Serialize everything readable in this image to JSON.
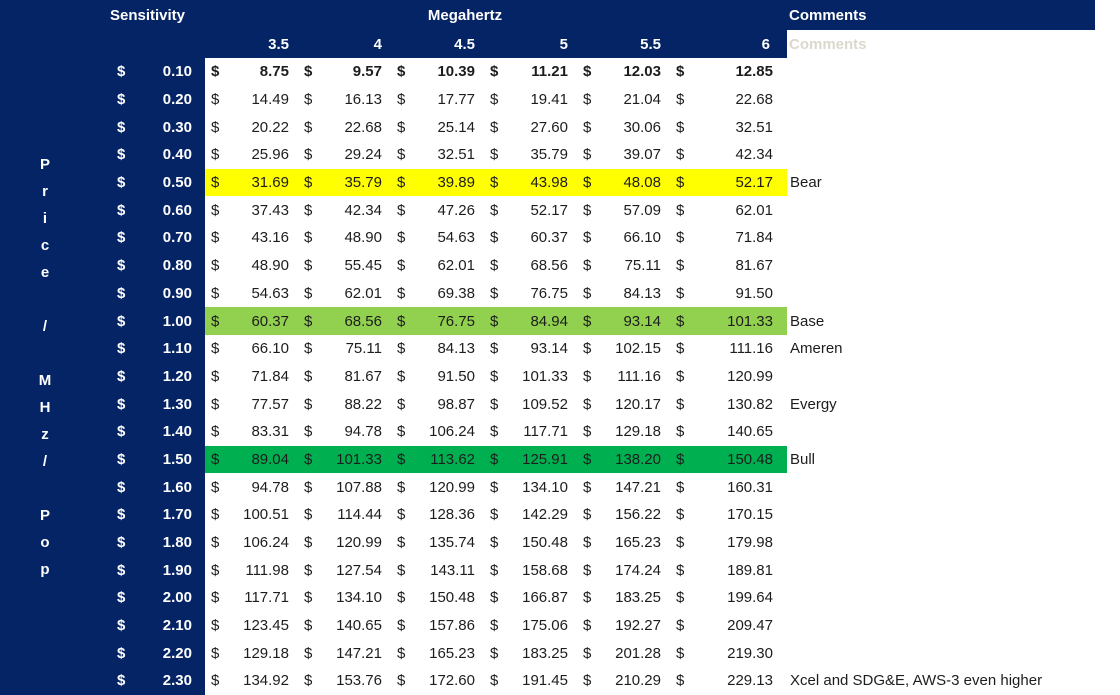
{
  "colors": {
    "navy": "#052465",
    "sheet_background": "#ffffff",
    "text_white": "#ffffff",
    "text_dark": "#1d1d1d",
    "highlight_yellow": "#ffff00",
    "highlight_light_green": "#92d050",
    "highlight_dark_green": "#00b050"
  },
  "header": {
    "sensitivity_label": "Sensitivity",
    "megahertz_label": "Megahertz",
    "comments_label": "Comments",
    "comments_ghost_label": "Comments",
    "mhz_columns": [
      "3.5",
      "4",
      "4.5",
      "5",
      "5.5",
      "6"
    ]
  },
  "left_axis": {
    "label": "Price / MHz / Pop",
    "label_vertical_lines": "P\nr\ni\nc\ne\n\n/\n\nM\nH\nz\n/\n\nP\no\np"
  },
  "table": {
    "currency_symbol": "$",
    "rows": [
      {
        "price": "0.10",
        "values": [
          "8.75",
          "9.57",
          "10.39",
          "11.21",
          "12.03",
          "12.85"
        ],
        "highlight": "none",
        "bold": true,
        "comment": ""
      },
      {
        "price": "0.20",
        "values": [
          "14.49",
          "16.13",
          "17.77",
          "19.41",
          "21.04",
          "22.68"
        ],
        "highlight": "none",
        "bold": false,
        "comment": ""
      },
      {
        "price": "0.30",
        "values": [
          "20.22",
          "22.68",
          "25.14",
          "27.60",
          "30.06",
          "32.51"
        ],
        "highlight": "none",
        "bold": false,
        "comment": ""
      },
      {
        "price": "0.40",
        "values": [
          "25.96",
          "29.24",
          "32.51",
          "35.79",
          "39.07",
          "42.34"
        ],
        "highlight": "none",
        "bold": false,
        "comment": ""
      },
      {
        "price": "0.50",
        "values": [
          "31.69",
          "35.79",
          "39.89",
          "43.98",
          "48.08",
          "52.17"
        ],
        "highlight": "yellow",
        "bold": false,
        "comment": "Bear"
      },
      {
        "price": "0.60",
        "values": [
          "37.43",
          "42.34",
          "47.26",
          "52.17",
          "57.09",
          "62.01"
        ],
        "highlight": "none",
        "bold": false,
        "comment": ""
      },
      {
        "price": "0.70",
        "values": [
          "43.16",
          "48.90",
          "54.63",
          "60.37",
          "66.10",
          "71.84"
        ],
        "highlight": "none",
        "bold": false,
        "comment": ""
      },
      {
        "price": "0.80",
        "values": [
          "48.90",
          "55.45",
          "62.01",
          "68.56",
          "75.11",
          "81.67"
        ],
        "highlight": "none",
        "bold": false,
        "comment": ""
      },
      {
        "price": "0.90",
        "values": [
          "54.63",
          "62.01",
          "69.38",
          "76.75",
          "84.13",
          "91.50"
        ],
        "highlight": "none",
        "bold": false,
        "comment": ""
      },
      {
        "price": "1.00",
        "values": [
          "60.37",
          "68.56",
          "76.75",
          "84.94",
          "93.14",
          "101.33"
        ],
        "highlight": "light_green",
        "bold": false,
        "comment": "Base"
      },
      {
        "price": "1.10",
        "values": [
          "66.10",
          "75.11",
          "84.13",
          "93.14",
          "102.15",
          "111.16"
        ],
        "highlight": "none",
        "bold": false,
        "comment": "Ameren"
      },
      {
        "price": "1.20",
        "values": [
          "71.84",
          "81.67",
          "91.50",
          "101.33",
          "111.16",
          "120.99"
        ],
        "highlight": "none",
        "bold": false,
        "comment": ""
      },
      {
        "price": "1.30",
        "values": [
          "77.57",
          "88.22",
          "98.87",
          "109.52",
          "120.17",
          "130.82"
        ],
        "highlight": "none",
        "bold": false,
        "comment": "Evergy"
      },
      {
        "price": "1.40",
        "values": [
          "83.31",
          "94.78",
          "106.24",
          "117.71",
          "129.18",
          "140.65"
        ],
        "highlight": "none",
        "bold": false,
        "comment": ""
      },
      {
        "price": "1.50",
        "values": [
          "89.04",
          "101.33",
          "113.62",
          "125.91",
          "138.20",
          "150.48"
        ],
        "highlight": "dark_green",
        "bold": false,
        "comment": "Bull"
      },
      {
        "price": "1.60",
        "values": [
          "94.78",
          "107.88",
          "120.99",
          "134.10",
          "147.21",
          "160.31"
        ],
        "highlight": "none",
        "bold": false,
        "comment": ""
      },
      {
        "price": "1.70",
        "values": [
          "100.51",
          "114.44",
          "128.36",
          "142.29",
          "156.22",
          "170.15"
        ],
        "highlight": "none",
        "bold": false,
        "comment": ""
      },
      {
        "price": "1.80",
        "values": [
          "106.24",
          "120.99",
          "135.74",
          "150.48",
          "165.23",
          "179.98"
        ],
        "highlight": "none",
        "bold": false,
        "comment": ""
      },
      {
        "price": "1.90",
        "values": [
          "111.98",
          "127.54",
          "143.11",
          "158.68",
          "174.24",
          "189.81"
        ],
        "highlight": "none",
        "bold": false,
        "comment": ""
      },
      {
        "price": "2.00",
        "values": [
          "117.71",
          "134.10",
          "150.48",
          "166.87",
          "183.25",
          "199.64"
        ],
        "highlight": "none",
        "bold": false,
        "comment": ""
      },
      {
        "price": "2.10",
        "values": [
          "123.45",
          "140.65",
          "157.86",
          "175.06",
          "192.27",
          "209.47"
        ],
        "highlight": "none",
        "bold": false,
        "comment": ""
      },
      {
        "price": "2.20",
        "values": [
          "129.18",
          "147.21",
          "165.23",
          "183.25",
          "201.28",
          "219.30"
        ],
        "highlight": "none",
        "bold": false,
        "comment": ""
      },
      {
        "price": "2.30",
        "values": [
          "134.92",
          "153.76",
          "172.60",
          "191.45",
          "210.29",
          "229.13"
        ],
        "highlight": "none",
        "bold": false,
        "comment": "Xcel and SDG&E, AWS-3 even higher"
      }
    ]
  }
}
